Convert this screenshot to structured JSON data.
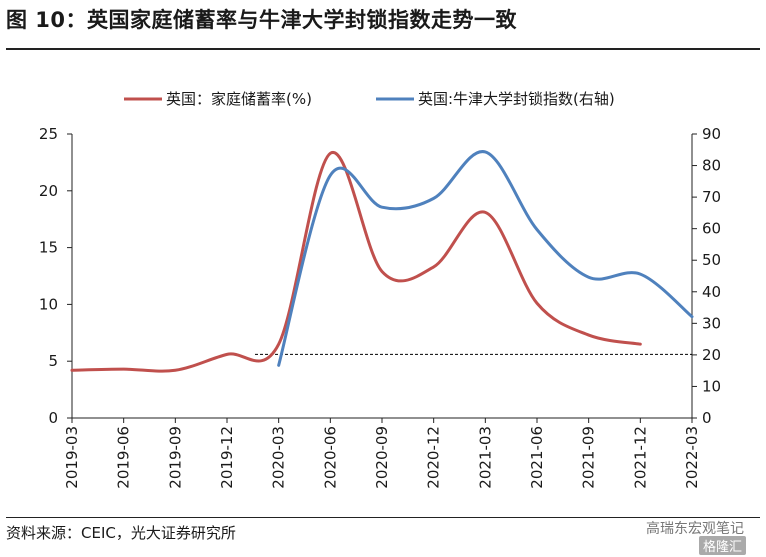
{
  "header": {
    "title": "图 10：英国家庭储蓄率与牛津大学封锁指数走势一致"
  },
  "footer": {
    "source": "资料来源：CEIC，光大证券研究所",
    "watermark": "高瑞东宏观笔记",
    "watermark_badge": "格隆汇"
  },
  "chart_data": {
    "type": "line",
    "title": "",
    "categories": [
      "2019-03",
      "2019-06",
      "2019-09",
      "2019-12",
      "2020-03",
      "2020-06",
      "2020-09",
      "2020-12",
      "2021-03",
      "2021-06",
      "2021-09",
      "2021-12",
      "2022-03"
    ],
    "y_left": {
      "ylim": [
        0,
        25
      ],
      "ticks": [
        0,
        5,
        10,
        15,
        20,
        25
      ]
    },
    "y_right": {
      "ylim": [
        0,
        90
      ],
      "ticks": [
        0,
        10,
        20,
        30,
        40,
        50,
        60,
        70,
        80,
        90
      ]
    },
    "legend_position": "top",
    "series": [
      {
        "name": "英国：家庭储蓄率(%)",
        "axis": "left",
        "color": "#c0504d",
        "x": [
          "2019-03",
          "2019-06",
          "2019-09",
          "2019-12",
          "2020-03",
          "2020-06",
          "2020-09",
          "2020-12",
          "2021-03",
          "2021-06",
          "2021-09",
          "2021-12"
        ],
        "values": [
          4.2,
          4.3,
          4.2,
          5.6,
          6.5,
          23.3,
          12.9,
          13.3,
          18.1,
          10.1,
          7.3,
          6.5
        ]
      },
      {
        "name": "英国:牛津大学封锁指数(右轴)",
        "axis": "right",
        "color": "#4f81bd",
        "x": [
          "2020-03",
          "2020-06",
          "2020-09",
          "2020-12",
          "2021-03",
          "2021-06",
          "2021-09",
          "2021-12",
          "2022-03"
        ],
        "values": [
          16.7,
          76.9,
          66.8,
          69.6,
          84.3,
          59.7,
          44.6,
          45.6,
          32.1
        ]
      }
    ],
    "reference_line": {
      "axis": "left",
      "value": 5.6,
      "style": "dashed",
      "color": "#000000"
    }
  }
}
